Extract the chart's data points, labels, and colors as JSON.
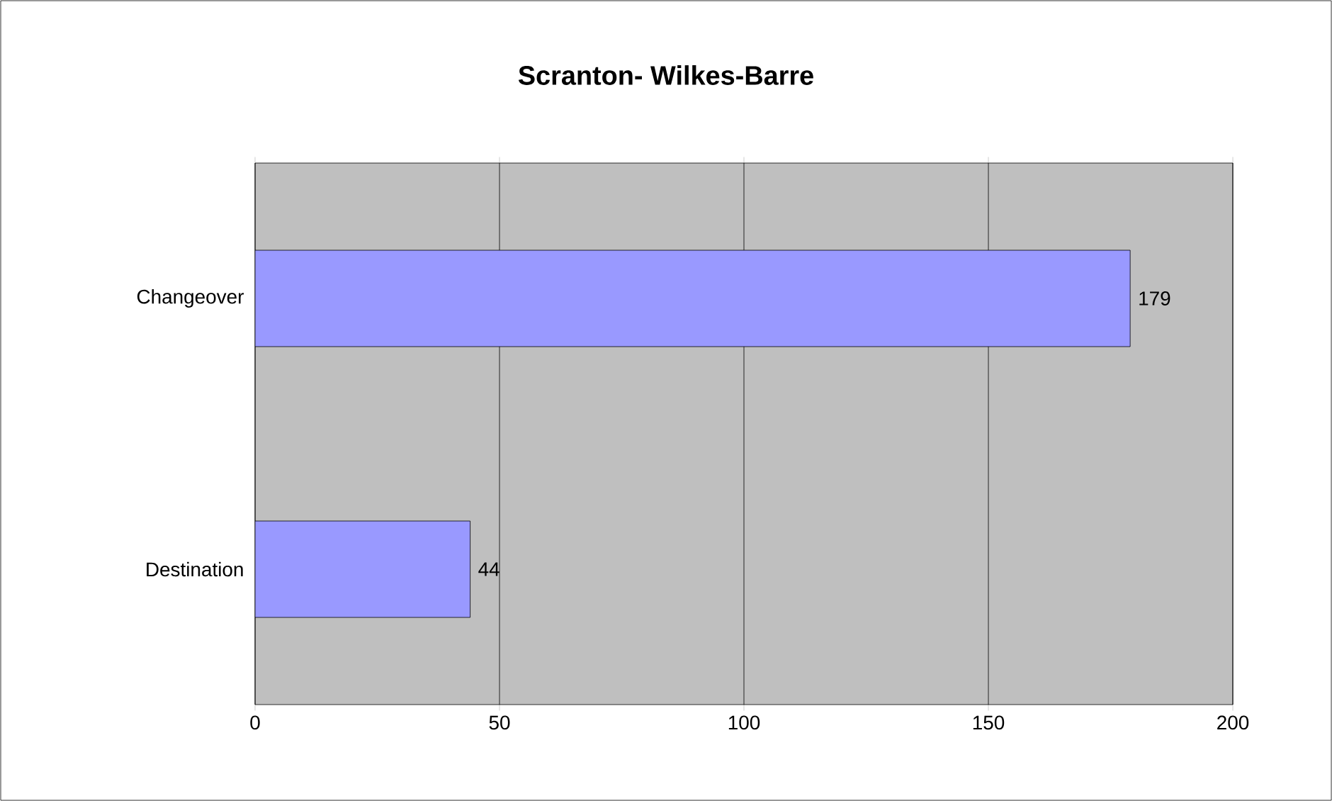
{
  "chart_data": {
    "type": "bar",
    "orientation": "horizontal",
    "title": "Scranton- Wilkes-Barre",
    "categories": [
      "Changeover",
      "Destination"
    ],
    "values": [
      179,
      44
    ],
    "color": "#9999ff",
    "xlim": [
      0,
      200
    ],
    "xticks": [
      0,
      50,
      100,
      150,
      200
    ],
    "grid": "x",
    "data_labels": true
  }
}
